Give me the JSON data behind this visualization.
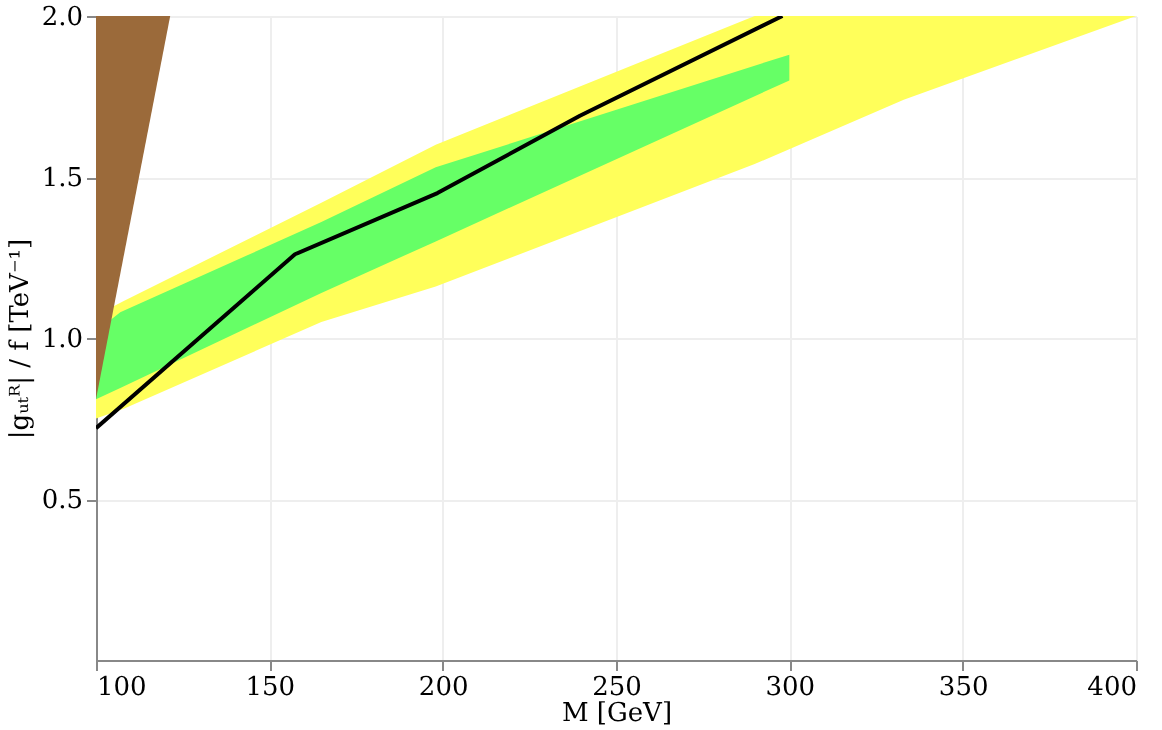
{
  "chart_data": {
    "type": "area",
    "xlabel": "M [GeV]",
    "ylabel": "|gᵤₜᴿ| / f  [TeV⁻¹]",
    "xlim": [
      100,
      400
    ],
    "xticks": [
      100,
      150,
      200,
      250,
      300,
      350,
      400
    ],
    "ylim": [
      0,
      2
    ],
    "yticks": [
      0.5,
      {
        "value": 1,
        "label": "1.0"
      },
      1.5,
      {
        "value": 2,
        "label": "2.0"
      }
    ],
    "grid": true,
    "series": [
      {
        "color": "#ffff5a",
        "x": [
          100,
          108,
          165,
          198,
          290,
          333,
          400
        ],
        "values": [
          null,
          null,
          null,
          null,
          null,
          null,
          null
        ],
        "lower": [
          0.75,
          0.78,
          1.05,
          1.16,
          1.54,
          1.74,
          2.0
        ],
        "upper": [
          1.07,
          1.115,
          1.42,
          1.6,
          2.0,
          2.0,
          2.0
        ]
      },
      {
        "color": "#66ff66",
        "x": [
          100,
          107,
          165,
          198,
          300
        ],
        "values": [
          null,
          null,
          null,
          null,
          null
        ],
        "lower": [
          0.81,
          0.845,
          1.14,
          1.3,
          1.8
        ],
        "upper": [
          1.02,
          1.08,
          1.36,
          1.53,
          1.88
        ]
      },
      {
        "color": "#9b6a3a",
        "x": [
          100,
          121.4
        ],
        "values": [
          null,
          null
        ],
        "lower": [
          0.81,
          2.0
        ],
        "upper": [
          2.0,
          2.0
        ]
      },
      {
        "type": "line",
        "color": "#000000",
        "x": [
          100,
          157.4,
          198.5,
          239.6,
          298
        ],
        "values": [
          0.72,
          1.26,
          1.45,
          1.69,
          2.0
        ]
      }
    ]
  }
}
